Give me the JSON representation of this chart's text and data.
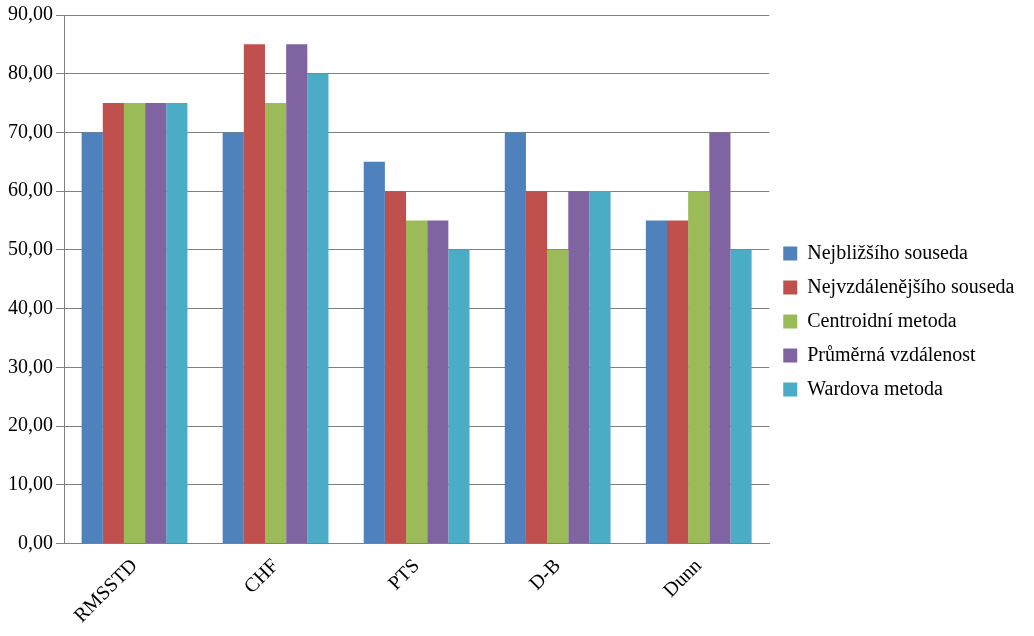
{
  "chart_data": {
    "type": "bar",
    "categories": [
      "RMSSTD",
      "CHF",
      "PTS",
      "D-B",
      "Dunn"
    ],
    "series": [
      {
        "name": "Nejbližšího souseda",
        "color": "#4f81bd",
        "values": [
          70,
          70,
          65,
          70,
          55
        ]
      },
      {
        "name": "Nejvzdálenějšího souseda",
        "color": "#c0504d",
        "values": [
          75,
          85,
          60,
          60,
          55
        ]
      },
      {
        "name": "Centroidní metoda",
        "color": "#9bbb59",
        "values": [
          75,
          75,
          55,
          50,
          60
        ]
      },
      {
        "name": "Průměrná vzdálenost",
        "color": "#8064a2",
        "values": [
          75,
          85,
          55,
          60,
          70
        ]
      },
      {
        "name": "Wardova metoda",
        "color": "#4bacc6",
        "values": [
          75,
          80,
          50,
          60,
          50
        ]
      }
    ],
    "ylim": [
      0,
      90
    ],
    "yticks": [
      {
        "value": 0,
        "label": "0,00"
      },
      {
        "value": 10,
        "label": "10,00"
      },
      {
        "value": 20,
        "label": "20,00"
      },
      {
        "value": 30,
        "label": "30,00"
      },
      {
        "value": 40,
        "label": "40,00"
      },
      {
        "value": 50,
        "label": "50,00"
      },
      {
        "value": 60,
        "label": "60,00"
      },
      {
        "value": 70,
        "label": "70,00"
      },
      {
        "value": 80,
        "label": "80,00"
      },
      {
        "value": 90,
        "label": "90,00"
      }
    ],
    "grid": "y",
    "legend": "right"
  }
}
